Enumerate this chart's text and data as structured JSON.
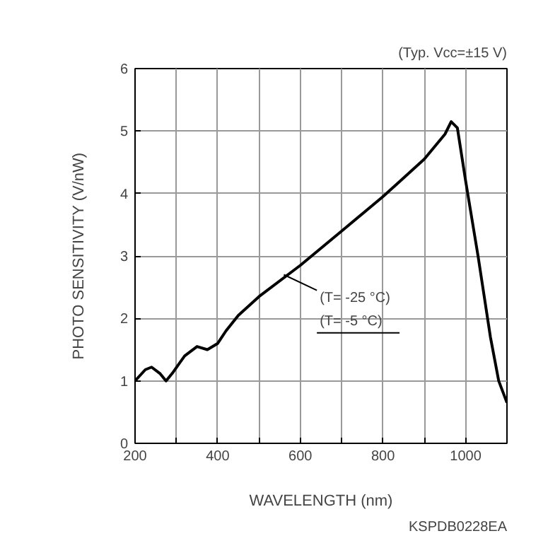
{
  "chart_data": {
    "type": "line",
    "subtitle": "(Typ. Vcc=±15 V)",
    "xlabel": "WAVELENGTH (nm)",
    "ylabel": "PHOTO SENSITIVITY (V/nW)",
    "x": [
      200,
      225,
      240,
      260,
      275,
      290,
      320,
      350,
      375,
      400,
      420,
      450,
      500,
      600,
      700,
      800,
      900,
      950,
      965,
      980,
      1000,
      1030,
      1060,
      1080,
      1100
    ],
    "series": [
      {
        "color": "#000000",
        "values": [
          1.0,
          1.18,
          1.22,
          1.12,
          1.0,
          1.12,
          1.4,
          1.55,
          1.5,
          1.6,
          1.8,
          2.05,
          2.35,
          2.85,
          3.4,
          3.95,
          4.55,
          4.95,
          5.15,
          5.05,
          4.2,
          3.0,
          1.7,
          1.0,
          0.65
        ]
      }
    ],
    "xlim": [
      200,
      1100
    ],
    "ylim": [
      0,
      6
    ],
    "xticks": [
      200,
      {
        "value": 300,
        "label": null
      },
      400,
      {
        "value": 500,
        "label": null
      },
      600,
      {
        "value": 700,
        "label": null
      },
      800,
      {
        "value": 900,
        "label": null
      },
      1000,
      {
        "value": 1100,
        "label": null
      }
    ],
    "yticks": [
      0,
      1,
      2,
      3,
      4,
      5,
      6
    ],
    "grid": true,
    "marker": "none",
    "line_style": "solid",
    "annotations": [
      {
        "text": "(T= -25 °C)",
        "x": 560,
        "y": 2.7
      },
      "(T= -5 °C)",
      "KSPDB0228EA"
    ]
  }
}
